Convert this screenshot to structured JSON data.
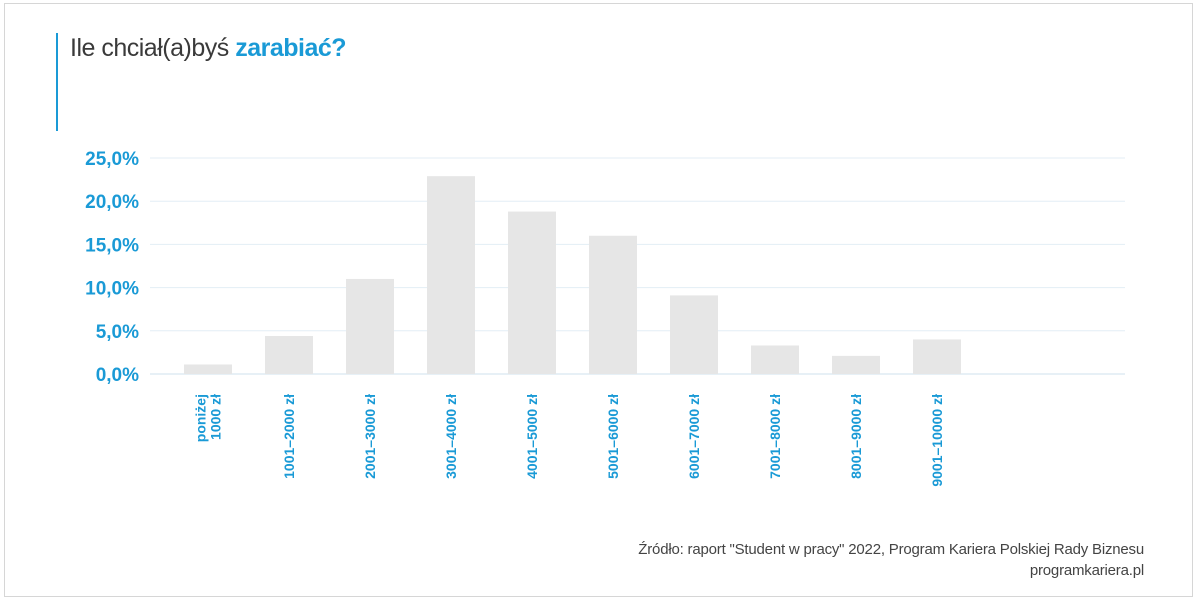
{
  "title": {
    "prefix": "Ile chciał(a)byś",
    "highlight": "zarabiać?"
  },
  "colors": {
    "accent": "#1a9ad6",
    "bar": "#e6e6e6",
    "grid": "#e3eef5",
    "text": "#3a3a3a"
  },
  "chart_data": {
    "type": "bar",
    "categories": [
      [
        "poniżej",
        "1000 zł"
      ],
      [
        "1001–2000 zł"
      ],
      [
        "2001–3000 zł"
      ],
      [
        "3001–4000 zł"
      ],
      [
        "4001–5000 zł"
      ],
      [
        "5001–6000 zł"
      ],
      [
        "6001–7000 zł"
      ],
      [
        "7001–8000 zł"
      ],
      [
        "8001–9000 zł"
      ],
      [
        "9001–10000 zł"
      ]
    ],
    "values": [
      1.1,
      4.4,
      11.0,
      22.9,
      18.8,
      16.0,
      9.1,
      3.3,
      2.1,
      4.0
    ],
    "yticks": [
      0,
      5,
      10,
      15,
      20,
      25
    ],
    "ytick_labels": [
      "0,0%",
      "5,0%",
      "10,0%",
      "15,0%",
      "20,0%",
      "25,0%"
    ],
    "ylim": [
      0,
      25
    ],
    "grid": true,
    "legend": false,
    "title": "Ile chciał(a)byś zarabiać?",
    "xlabel": "",
    "ylabel": ""
  },
  "source": {
    "line1": "Źródło: raport \"Student w pracy\" 2022, Program Kariera Polskiej Rady Biznesu",
    "line2": "programkariera.pl"
  }
}
